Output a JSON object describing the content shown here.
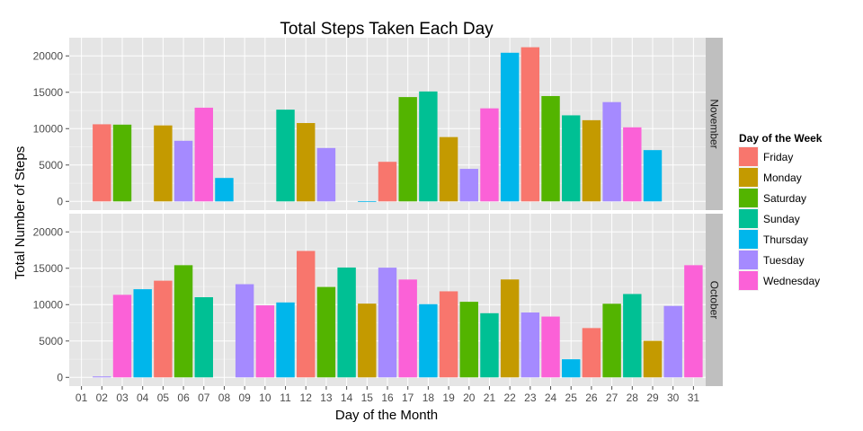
{
  "chart_data": {
    "type": "bar",
    "title": "Total Steps Taken Each Day",
    "xlabel": "Day of the Month",
    "ylabel": "Total Number of Steps",
    "x_ticks": [
      "01",
      "02",
      "03",
      "04",
      "05",
      "06",
      "07",
      "08",
      "09",
      "10",
      "11",
      "12",
      "13",
      "14",
      "15",
      "16",
      "17",
      "18",
      "19",
      "20",
      "21",
      "22",
      "23",
      "24",
      "25",
      "26",
      "27",
      "28",
      "29",
      "30",
      "31"
    ],
    "y_ticks": [
      0,
      5000,
      10000,
      15000,
      20000
    ],
    "ylim": [
      -1200,
      22500
    ],
    "grid": true,
    "legend": {
      "title": "Day of the Week",
      "position": "right",
      "entries": [
        {
          "name": "Friday",
          "color": "#F8766D"
        },
        {
          "name": "Monday",
          "color": "#C49A00"
        },
        {
          "name": "Saturday",
          "color": "#53B400"
        },
        {
          "name": "Sunday",
          "color": "#00C094"
        },
        {
          "name": "Thursday",
          "color": "#00B6EB"
        },
        {
          "name": "Tuesday",
          "color": "#A58AFF"
        },
        {
          "name": "Wednesday",
          "color": "#FB61D7"
        }
      ]
    },
    "panels": [
      {
        "label": "November",
        "bars": [
          {
            "day": 1,
            "weekday": "Thursday",
            "value": 0
          },
          {
            "day": 2,
            "weekday": "Friday",
            "value": 10600
          },
          {
            "day": 3,
            "weekday": "Saturday",
            "value": 10550
          },
          {
            "day": 4,
            "weekday": "Sunday",
            "value": 0
          },
          {
            "day": 5,
            "weekday": "Monday",
            "value": 10440
          },
          {
            "day": 6,
            "weekday": "Tuesday",
            "value": 8330
          },
          {
            "day": 7,
            "weekday": "Wednesday",
            "value": 12880
          },
          {
            "day": 8,
            "weekday": "Thursday",
            "value": 3220
          },
          {
            "day": 9,
            "weekday": "Friday",
            "value": 0
          },
          {
            "day": 10,
            "weekday": "Saturday",
            "value": 0
          },
          {
            "day": 11,
            "weekday": "Sunday",
            "value": 12610
          },
          {
            "day": 12,
            "weekday": "Monday",
            "value": 10770
          },
          {
            "day": 13,
            "weekday": "Tuesday",
            "value": 7340
          },
          {
            "day": 14,
            "weekday": "Wednesday",
            "value": 0
          },
          {
            "day": 15,
            "weekday": "Thursday",
            "value": 40
          },
          {
            "day": 16,
            "weekday": "Friday",
            "value": 5440
          },
          {
            "day": 17,
            "weekday": "Saturday",
            "value": 14340
          },
          {
            "day": 18,
            "weekday": "Sunday",
            "value": 15110
          },
          {
            "day": 19,
            "weekday": "Monday",
            "value": 8840
          },
          {
            "day": 20,
            "weekday": "Tuesday",
            "value": 4470
          },
          {
            "day": 21,
            "weekday": "Wednesday",
            "value": 12790
          },
          {
            "day": 22,
            "weekday": "Thursday",
            "value": 20430
          },
          {
            "day": 23,
            "weekday": "Friday",
            "value": 21190
          },
          {
            "day": 24,
            "weekday": "Saturday",
            "value": 14480
          },
          {
            "day": 25,
            "weekday": "Sunday",
            "value": 11830
          },
          {
            "day": 26,
            "weekday": "Monday",
            "value": 11160
          },
          {
            "day": 27,
            "weekday": "Tuesday",
            "value": 13650
          },
          {
            "day": 28,
            "weekday": "Wednesday",
            "value": 10180
          },
          {
            "day": 29,
            "weekday": "Thursday",
            "value": 7050
          },
          {
            "day": 30,
            "weekday": "Friday",
            "value": 0
          }
        ]
      },
      {
        "label": "October",
        "bars": [
          {
            "day": 1,
            "weekday": "Monday",
            "value": 0
          },
          {
            "day": 2,
            "weekday": "Tuesday",
            "value": 130
          },
          {
            "day": 3,
            "weekday": "Wednesday",
            "value": 11350
          },
          {
            "day": 4,
            "weekday": "Thursday",
            "value": 12120
          },
          {
            "day": 5,
            "weekday": "Friday",
            "value": 13290
          },
          {
            "day": 6,
            "weekday": "Saturday",
            "value": 15420
          },
          {
            "day": 7,
            "weekday": "Sunday",
            "value": 11020
          },
          {
            "day": 8,
            "weekday": "Monday",
            "value": 0
          },
          {
            "day": 9,
            "weekday": "Tuesday",
            "value": 12810
          },
          {
            "day": 10,
            "weekday": "Wednesday",
            "value": 9900
          },
          {
            "day": 11,
            "weekday": "Thursday",
            "value": 10300
          },
          {
            "day": 12,
            "weekday": "Friday",
            "value": 17380
          },
          {
            "day": 13,
            "weekday": "Saturday",
            "value": 12430
          },
          {
            "day": 14,
            "weekday": "Sunday",
            "value": 15100
          },
          {
            "day": 15,
            "weekday": "Monday",
            "value": 10140
          },
          {
            "day": 16,
            "weekday": "Tuesday",
            "value": 15080
          },
          {
            "day": 17,
            "weekday": "Wednesday",
            "value": 13450
          },
          {
            "day": 18,
            "weekday": "Thursday",
            "value": 10060
          },
          {
            "day": 19,
            "weekday": "Friday",
            "value": 11830
          },
          {
            "day": 20,
            "weekday": "Saturday",
            "value": 10390
          },
          {
            "day": 21,
            "weekday": "Sunday",
            "value": 8820
          },
          {
            "day": 22,
            "weekday": "Monday",
            "value": 13460
          },
          {
            "day": 23,
            "weekday": "Tuesday",
            "value": 8920
          },
          {
            "day": 24,
            "weekday": "Wednesday",
            "value": 8360
          },
          {
            "day": 25,
            "weekday": "Thursday",
            "value": 2490
          },
          {
            "day": 26,
            "weekday": "Friday",
            "value": 6780
          },
          {
            "day": 27,
            "weekday": "Saturday",
            "value": 10120
          },
          {
            "day": 28,
            "weekday": "Sunday",
            "value": 11460
          },
          {
            "day": 29,
            "weekday": "Monday",
            "value": 5020
          },
          {
            "day": 30,
            "weekday": "Tuesday",
            "value": 9820
          },
          {
            "day": 31,
            "weekday": "Wednesday",
            "value": 15420
          }
        ]
      }
    ]
  }
}
